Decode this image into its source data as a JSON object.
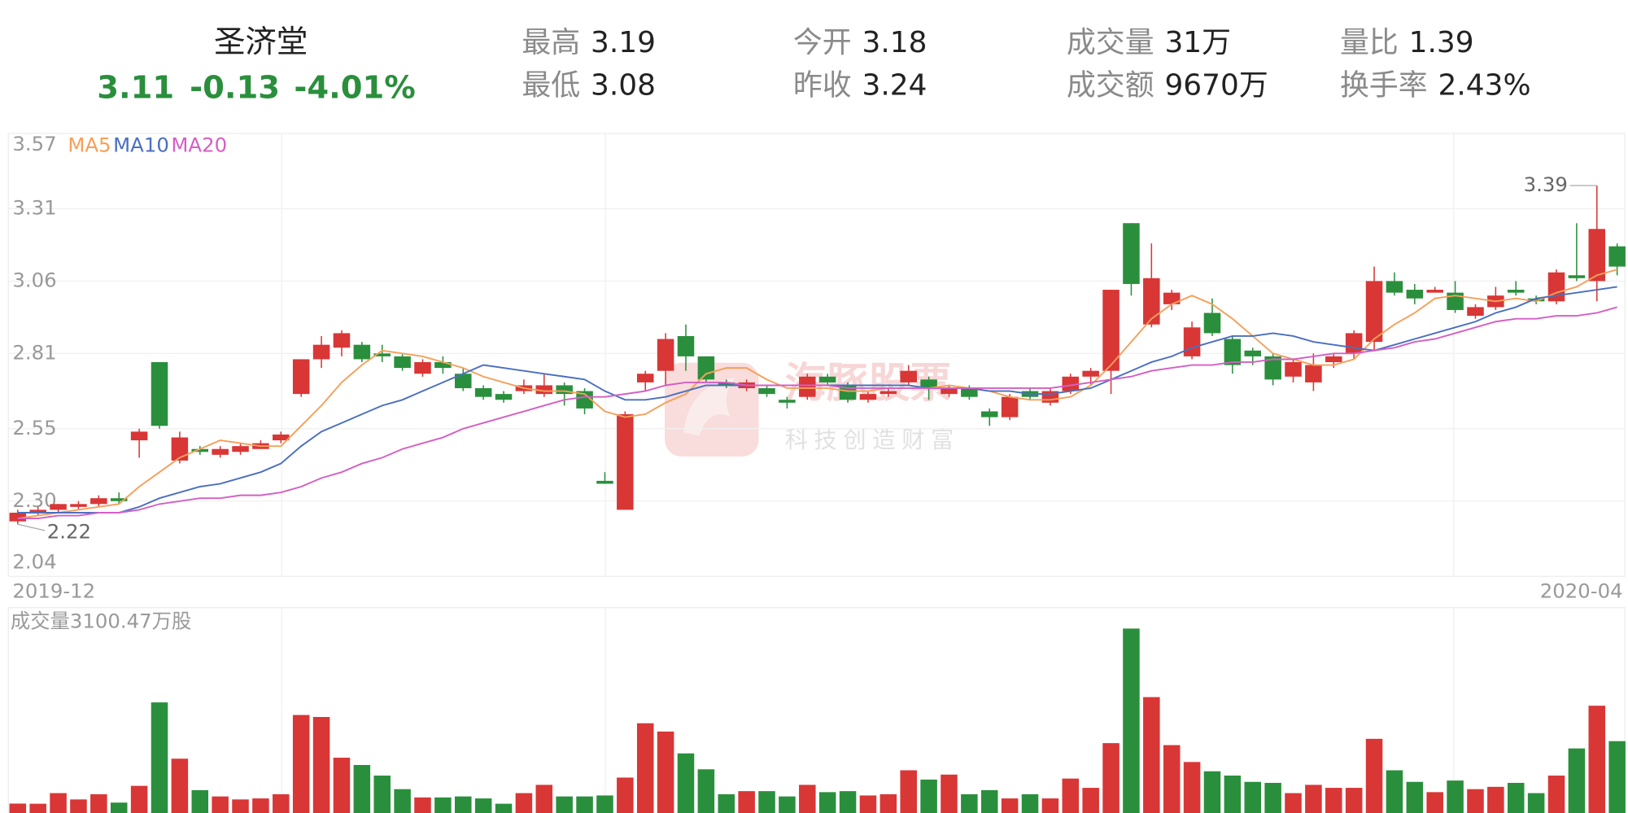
{
  "quote": {
    "name": "圣济堂",
    "price": "3.11",
    "change": "-0.13",
    "change_pct": "-4.01%",
    "stats": [
      {
        "label": "最高",
        "value": "3.19"
      },
      {
        "label": "最低",
        "value": "3.08"
      },
      {
        "label": "今开",
        "value": "3.18"
      },
      {
        "label": "昨收",
        "value": "3.24"
      },
      {
        "label": "成交量",
        "value": "31万"
      },
      {
        "label": "成交额",
        "value": "9670万"
      },
      {
        "label": "量比",
        "value": "1.39"
      },
      {
        "label": "换手率",
        "value": "2.43%"
      }
    ]
  },
  "watermark": {
    "brand": "海豚股票",
    "slogan": "科技创造财富"
  },
  "chart_data": {
    "type": "candlestick",
    "categories": [
      "2019-12",
      null,
      null,
      null,
      null,
      null,
      null,
      null,
      null,
      null,
      null,
      null,
      null,
      null,
      null,
      null,
      null,
      null,
      null,
      null,
      null,
      null,
      null,
      null,
      null,
      null,
      null,
      null,
      null,
      null,
      null,
      null,
      null,
      null,
      null,
      null,
      null,
      null,
      null,
      null,
      null,
      null,
      null,
      null,
      null,
      null,
      null,
      null,
      null,
      null,
      null,
      null,
      null,
      null,
      null,
      null,
      null,
      null,
      null,
      null,
      null,
      null,
      null,
      null,
      null,
      null,
      null,
      null,
      null,
      null,
      null,
      null,
      null,
      null,
      null,
      null,
      null,
      null,
      null,
      "2020-04"
    ],
    "open": [
      2.23,
      2.26,
      2.27,
      2.28,
      2.29,
      2.31,
      2.51,
      2.78,
      2.44,
      2.48,
      2.46,
      2.47,
      2.48,
      2.51,
      2.67,
      2.79,
      2.83,
      2.84,
      2.81,
      2.8,
      2.74,
      2.78,
      2.74,
      2.69,
      2.67,
      2.68,
      2.67,
      2.7,
      2.68,
      2.37,
      2.27,
      2.71,
      2.75,
      2.87,
      2.8,
      2.71,
      2.69,
      2.69,
      2.65,
      2.66,
      2.73,
      2.7,
      2.65,
      2.67,
      2.71,
      2.72,
      2.67,
      2.69,
      2.61,
      2.59,
      2.68,
      2.64,
      2.68,
      2.73,
      2.75,
      3.26,
      2.91,
      2.98,
      2.8,
      2.95,
      2.86,
      2.82,
      2.8,
      2.73,
      2.71,
      2.78,
      2.81,
      2.85,
      3.06,
      3.03,
      3.02,
      3.02,
      2.94,
      2.97,
      3.03,
      3.0,
      2.99,
      3.08,
      3.06,
      3.18
    ],
    "high": [
      2.27,
      2.28,
      2.29,
      2.3,
      2.32,
      2.33,
      2.55,
      2.78,
      2.54,
      2.49,
      2.49,
      2.5,
      2.51,
      2.54,
      2.79,
      2.87,
      2.89,
      2.85,
      2.84,
      2.81,
      2.79,
      2.8,
      2.76,
      2.7,
      2.68,
      2.72,
      2.74,
      2.71,
      2.69,
      2.4,
      2.61,
      2.75,
      2.88,
      2.91,
      2.8,
      2.72,
      2.72,
      2.7,
      2.66,
      2.74,
      2.74,
      2.71,
      2.68,
      2.69,
      2.77,
      2.73,
      2.7,
      2.7,
      2.62,
      2.67,
      2.69,
      2.69,
      2.74,
      2.76,
      3.03,
      3.26,
      3.19,
      3.03,
      2.92,
      3.0,
      2.87,
      2.83,
      2.81,
      2.79,
      2.81,
      2.81,
      2.89,
      3.11,
      3.09,
      3.05,
      3.04,
      3.06,
      2.98,
      3.04,
      3.06,
      3.01,
      3.1,
      3.26,
      3.39,
      3.19
    ],
    "low": [
      2.22,
      2.25,
      2.26,
      2.27,
      2.28,
      2.29,
      2.45,
      2.55,
      2.43,
      2.46,
      2.45,
      2.46,
      2.48,
      2.5,
      2.66,
      2.76,
      2.8,
      2.78,
      2.78,
      2.75,
      2.73,
      2.74,
      2.68,
      2.65,
      2.64,
      2.67,
      2.66,
      2.63,
      2.6,
      2.36,
      2.27,
      2.68,
      2.7,
      2.75,
      2.71,
      2.69,
      2.68,
      2.66,
      2.62,
      2.65,
      2.7,
      2.64,
      2.64,
      2.66,
      2.7,
      2.65,
      2.66,
      2.65,
      2.56,
      2.58,
      2.65,
      2.63,
      2.67,
      2.7,
      2.67,
      3.01,
      2.9,
      2.96,
      2.79,
      2.87,
      2.74,
      2.77,
      2.7,
      2.71,
      2.68,
      2.76,
      2.79,
      2.82,
      3.01,
      2.98,
      3.02,
      2.95,
      2.93,
      2.96,
      3.01,
      2.98,
      2.98,
      3.06,
      2.99,
      3.08
    ],
    "close": [
      2.26,
      2.27,
      2.29,
      2.29,
      2.31,
      2.3,
      2.54,
      2.56,
      2.52,
      2.47,
      2.48,
      2.49,
      2.5,
      2.53,
      2.79,
      2.84,
      2.88,
      2.79,
      2.8,
      2.76,
      2.78,
      2.76,
      2.69,
      2.66,
      2.65,
      2.7,
      2.7,
      2.67,
      2.62,
      2.36,
      2.6,
      2.74,
      2.86,
      2.8,
      2.72,
      2.7,
      2.71,
      2.67,
      2.64,
      2.73,
      2.71,
      2.65,
      2.67,
      2.68,
      2.75,
      2.69,
      2.69,
      2.66,
      2.59,
      2.66,
      2.66,
      2.68,
      2.73,
      2.75,
      3.03,
      3.05,
      3.07,
      3.02,
      2.9,
      2.88,
      2.77,
      2.8,
      2.72,
      2.78,
      2.77,
      2.8,
      2.88,
      3.06,
      3.02,
      3.0,
      3.03,
      2.96,
      2.97,
      3.01,
      3.02,
      2.99,
      3.09,
      3.07,
      3.24,
      3.11
    ],
    "up_color": "#d93636",
    "down_color": "#2a8f3c",
    "series": [
      {
        "name": "MA5",
        "color": "#f5a05a",
        "values": [
          2.24,
          2.25,
          2.26,
          2.27,
          2.28,
          2.29,
          2.35,
          2.4,
          2.45,
          2.48,
          2.51,
          2.5,
          2.49,
          2.49,
          2.56,
          2.63,
          2.71,
          2.77,
          2.82,
          2.81,
          2.8,
          2.78,
          2.76,
          2.73,
          2.71,
          2.69,
          2.68,
          2.68,
          2.67,
          2.61,
          2.59,
          2.6,
          2.64,
          2.67,
          2.74,
          2.76,
          2.76,
          2.72,
          2.69,
          2.69,
          2.69,
          2.68,
          2.68,
          2.69,
          2.69,
          2.69,
          2.7,
          2.69,
          2.68,
          2.66,
          2.65,
          2.65,
          2.66,
          2.7,
          2.77,
          2.85,
          2.93,
          2.98,
          3.01,
          2.98,
          2.93,
          2.87,
          2.81,
          2.79,
          2.77,
          2.77,
          2.79,
          2.86,
          2.91,
          2.95,
          3.0,
          3.01,
          3.0,
          2.99,
          3.0,
          2.99,
          3.02,
          3.04,
          3.08,
          3.1
        ]
      },
      {
        "name": "MA10",
        "color": "#4a6fc0",
        "values": [
          2.26,
          2.26,
          2.26,
          2.26,
          2.26,
          2.26,
          2.28,
          2.31,
          2.33,
          2.35,
          2.36,
          2.38,
          2.4,
          2.43,
          2.49,
          2.54,
          2.57,
          2.6,
          2.63,
          2.65,
          2.68,
          2.71,
          2.74,
          2.77,
          2.76,
          2.75,
          2.74,
          2.73,
          2.72,
          2.68,
          2.65,
          2.65,
          2.66,
          2.68,
          2.7,
          2.7,
          2.7,
          2.7,
          2.7,
          2.7,
          2.7,
          2.7,
          2.7,
          2.7,
          2.7,
          2.69,
          2.69,
          2.69,
          2.68,
          2.68,
          2.67,
          2.67,
          2.68,
          2.69,
          2.72,
          2.75,
          2.78,
          2.8,
          2.83,
          2.85,
          2.87,
          2.87,
          2.88,
          2.87,
          2.85,
          2.84,
          2.83,
          2.82,
          2.84,
          2.86,
          2.88,
          2.9,
          2.92,
          2.95,
          2.97,
          3.0,
          3.01,
          3.02,
          3.03,
          3.04
        ]
      },
      {
        "name": "MA20",
        "color": "#d45fc4",
        "values": [
          2.24,
          2.24,
          2.25,
          2.25,
          2.26,
          2.26,
          2.27,
          2.29,
          2.3,
          2.31,
          2.31,
          2.32,
          2.32,
          2.33,
          2.35,
          2.38,
          2.4,
          2.43,
          2.45,
          2.48,
          2.5,
          2.52,
          2.55,
          2.57,
          2.59,
          2.61,
          2.63,
          2.65,
          2.66,
          2.66,
          2.67,
          2.68,
          2.7,
          2.71,
          2.71,
          2.71,
          2.7,
          2.7,
          2.7,
          2.7,
          2.7,
          2.69,
          2.69,
          2.69,
          2.69,
          2.69,
          2.69,
          2.69,
          2.69,
          2.69,
          2.69,
          2.69,
          2.7,
          2.71,
          2.72,
          2.73,
          2.75,
          2.76,
          2.77,
          2.77,
          2.78,
          2.78,
          2.79,
          2.79,
          2.8,
          2.81,
          2.81,
          2.82,
          2.83,
          2.85,
          2.86,
          2.88,
          2.9,
          2.92,
          2.93,
          2.93,
          2.94,
          2.94,
          2.95,
          2.97
        ]
      }
    ],
    "ylim": [
      2.04,
      3.57
    ],
    "yticks": [
      2.04,
      {
        "value": 2.3,
        "label": "2.30"
      },
      2.55,
      2.81,
      3.06,
      3.31,
      3.57
    ],
    "grid": true,
    "volume": {
      "title": "成交量3100.47万股",
      "ylim": [
        0,
        3100.47
      ],
      "values": [
        142,
        140,
        300,
        205,
        283,
        157,
        410,
        1670,
        820,
        345,
        250,
        205,
        220,
        283,
        1480,
        1450,
        835,
        725,
        565,
        360,
        235,
        235,
        250,
        220,
        140,
        300,
        425,
        250,
        250,
        265,
        535,
        1355,
        1230,
        900,
        660,
        283,
        330,
        330,
        250,
        425,
        315,
        330,
        265,
        283,
        645,
        505,
        580,
        283,
        345,
        220,
        283,
        220,
        520,
        380,
        1055,
        2785,
        1750,
        1025,
        770,
        630,
        565,
        470,
        455,
        300,
        425,
        380,
        380,
        1120,
        645,
        470,
        315,
        490,
        360,
        395,
        455,
        300,
        565,
        975,
        1620,
        1085
      ]
    }
  }
}
